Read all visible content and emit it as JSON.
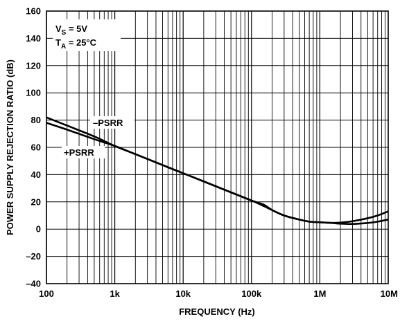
{
  "chart_data": {
    "type": "line",
    "xlabel": "FREQUENCY (Hz)",
    "ylabel": "POWER SUPPLY REJECTION RATIO (dB)",
    "x_scale": "log",
    "xlim": [
      100,
      10000000
    ],
    "ylim": [
      -40,
      160
    ],
    "grid": true,
    "x_ticks": [
      "100",
      "1k",
      "10k",
      "100k",
      "1M",
      "10M"
    ],
    "y_ticks": [
      "160",
      "140",
      "120",
      "100",
      "80",
      "60",
      "40",
      "20",
      "0",
      "–20",
      "–40"
    ],
    "annotations": {
      "vs_main": "V",
      "vs_sub": "S",
      "vs_rest": " = 5V",
      "ta_main": "T",
      "ta_sub": "A",
      "ta_rest": " = 25°C"
    },
    "series": [
      {
        "name": "–PSRR",
        "x": [
          100,
          200,
          500,
          1000,
          2000,
          5000,
          10000,
          20000,
          50000,
          100000,
          150000,
          200000,
          300000,
          500000,
          700000,
          1000000,
          1500000,
          2000000,
          3000000,
          5000000,
          7000000,
          10000000
        ],
        "y": [
          82,
          76,
          68,
          61,
          55,
          47,
          41,
          35,
          27,
          21,
          17,
          14,
          10,
          7,
          5.5,
          5,
          4.6,
          4.8,
          5.8,
          8,
          10,
          13
        ]
      },
      {
        "name": "+PSRR",
        "x": [
          100,
          200,
          500,
          1000,
          2000,
          5000,
          10000,
          20000,
          50000,
          100000,
          150000,
          200000,
          300000,
          500000,
          700000,
          1000000,
          1500000,
          2000000,
          3000000,
          5000000,
          7000000,
          10000000
        ],
        "y": [
          78,
          73,
          66,
          61,
          55,
          47,
          41,
          35,
          27,
          21,
          18,
          14,
          10,
          7,
          5.5,
          5,
          4.5,
          4,
          3.8,
          4.5,
          5.5,
          7
        ]
      }
    ]
  }
}
